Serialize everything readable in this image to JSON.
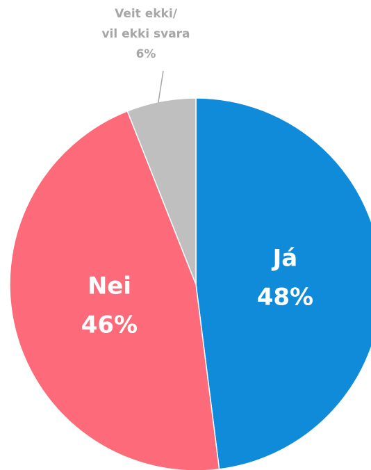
{
  "chart_data": {
    "type": "pie",
    "categories": [
      "Já",
      "Nei",
      "Veit ekki/\nvil ekki svara"
    ],
    "values": [
      48,
      46,
      6
    ],
    "value_labels": [
      "48%",
      "46%",
      "6%"
    ],
    "colors": [
      "#0f8bd9",
      "#fd6b7a",
      "#bfbfbf"
    ]
  }
}
